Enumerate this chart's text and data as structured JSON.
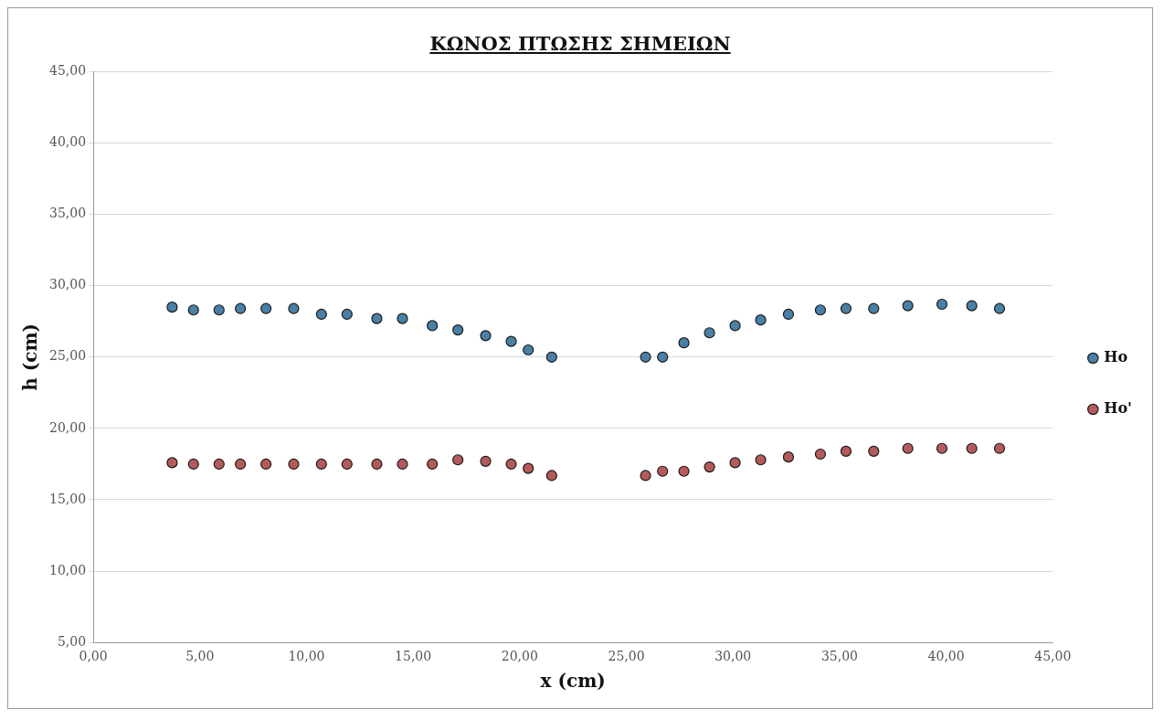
{
  "chart_data": {
    "type": "scatter",
    "title": "ΚΩΝΟΣ ΠΤΩΣΗΣ ΣΗΜΕΙΩΝ",
    "xlabel": "x (cm)",
    "ylabel": "h (cm)",
    "x": [
      3.7,
      4.7,
      5.9,
      6.9,
      8.1,
      9.4,
      10.7,
      11.9,
      13.3,
      14.5,
      15.9,
      17.1,
      18.4,
      19.6,
      20.4,
      21.5,
      25.9,
      26.7,
      27.7,
      28.9,
      30.1,
      31.3,
      32.6,
      34.1,
      35.3,
      36.6,
      38.2,
      39.8,
      41.2,
      42.5
    ],
    "series": [
      {
        "name": "Ho",
        "color": "#4a7fa6",
        "values": [
          28.5,
          28.3,
          28.3,
          28.4,
          28.4,
          28.4,
          28.0,
          28.0,
          27.7,
          27.7,
          27.2,
          26.9,
          26.5,
          26.1,
          25.5,
          25.0,
          25.0,
          25.0,
          26.0,
          26.7,
          27.2,
          27.6,
          28.0,
          28.3,
          28.4,
          28.4,
          28.6,
          28.7,
          28.6,
          28.4
        ]
      },
      {
        "name": "Ho'",
        "color": "#b55a5a",
        "values": [
          17.6,
          17.5,
          17.5,
          17.5,
          17.5,
          17.5,
          17.5,
          17.5,
          17.5,
          17.5,
          17.5,
          17.8,
          17.7,
          17.5,
          17.2,
          16.7,
          16.7,
          17.0,
          17.0,
          17.3,
          17.6,
          17.8,
          18.0,
          18.2,
          18.4,
          18.4,
          18.6,
          18.6,
          18.6,
          18.6
        ]
      }
    ],
    "xlim": [
      0,
      45
    ],
    "ylim": [
      5,
      45
    ],
    "xticks": [
      {
        "value": 0,
        "label": "0,00"
      },
      {
        "value": 5,
        "label": "5,00"
      },
      {
        "value": 10,
        "label": "10,00"
      },
      {
        "value": 15,
        "label": "15,00"
      },
      {
        "value": 20,
        "label": "20,00"
      },
      {
        "value": 25,
        "label": "25,00"
      },
      {
        "value": 30,
        "label": "30,00"
      },
      {
        "value": 35,
        "label": "35,00"
      },
      {
        "value": 40,
        "label": "40,00"
      },
      {
        "value": 45,
        "label": "45,00"
      }
    ],
    "yticks": [
      {
        "value": 5,
        "label": "5,00"
      },
      {
        "value": 10,
        "label": "10,00"
      },
      {
        "value": 15,
        "label": "15,00"
      },
      {
        "value": 20,
        "label": "20,00"
      },
      {
        "value": 25,
        "label": "25,00"
      },
      {
        "value": 30,
        "label": "30,00"
      },
      {
        "value": 35,
        "label": "35,00"
      },
      {
        "value": 40,
        "label": "40,00"
      },
      {
        "value": 45,
        "label": "45,00"
      }
    ],
    "grid": "y",
    "legend": "right",
    "marker": "circle"
  }
}
